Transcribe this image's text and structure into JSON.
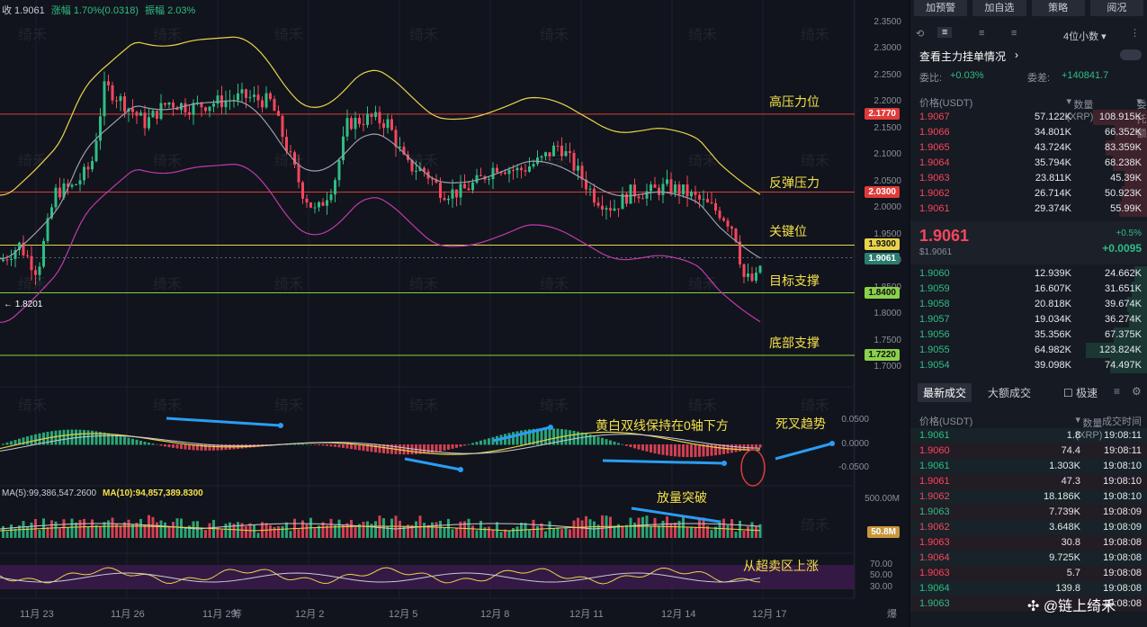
{
  "top_info": {
    "close": "收 1.9061",
    "change": "涨幅 1.70%(0.0318)",
    "amplitude": "振幅 2.03%"
  },
  "watermark": "绮禾",
  "price_axis": [
    "2.3500",
    "2.3000",
    "2.2500",
    "2.2000",
    "2.1500",
    "2.1000",
    "2.0500",
    "2.0000",
    "1.9500",
    "1.9000",
    "1.8500",
    "1.8000",
    "1.7500",
    "1.7000"
  ],
  "levels": [
    {
      "price": "2.1770",
      "label": "高压力位",
      "color": "#e03a3a"
    },
    {
      "price": "2.0300",
      "label": "反弹压力",
      "color": "#e03a3a"
    },
    {
      "price": "1.9300",
      "label": "关键位",
      "color": "#e8d44a"
    },
    {
      "price": "1.8400",
      "label": "目标支撑",
      "color": "#8bd04a"
    },
    {
      "price": "1.7220",
      "label": "底部支撑",
      "color": "#8bd04a"
    }
  ],
  "last_price_tag": "1.9061",
  "low_marker": "← 1.8201",
  "macd_axis": [
    "0.0500",
    "0.0000",
    "-0.0500"
  ],
  "macd_annos": {
    "a1": "黄白双线保持在0轴下方",
    "a2": "死叉趋势"
  },
  "vol_label": {
    "ma5": "MA(5):99,386,547.2600",
    "ma10": "MA(10):94,857,389.8300",
    "axis": "500.00M",
    "tag": "50.8M",
    "anno": "放量突破"
  },
  "rsi_axis": [
    "70.00",
    "50.00",
    "30.00"
  ],
  "rsi_anno": "从超卖区上涨",
  "x_labels": [
    "11月 23",
    "11月 26",
    "11月 29",
    "12月 2",
    "12月 5",
    "12月 8",
    "12月 11",
    "12月 14",
    "12月 17"
  ],
  "mini_labels": [
    "筹",
    "爆"
  ],
  "panel": {
    "buttons": [
      "加预警",
      "加自选",
      "策略",
      "阅况"
    ],
    "decimals": "4位小数",
    "main_force": "查看主力挂单情况",
    "ratio_label": "委比:",
    "ratio_value": "+0.03%",
    "diff_label": "委差:",
    "diff_value": "+140841.7",
    "headers": [
      "价格(USDT)",
      "数量 (XRP)",
      "委托额"
    ],
    "asks": [
      [
        "1.9067",
        "57.122K",
        "108.915K"
      ],
      [
        "1.9066",
        "34.801K",
        "66.352K"
      ],
      [
        "1.9065",
        "43.724K",
        "83.359K"
      ],
      [
        "1.9064",
        "35.794K",
        "68.238K"
      ],
      [
        "1.9063",
        "23.811K",
        "45.39K"
      ],
      [
        "1.9062",
        "26.714K",
        "50.923K"
      ],
      [
        "1.9061",
        "29.374K",
        "55.99K"
      ]
    ],
    "mid_price": "1.9061",
    "mid_usd": "$1.9061",
    "mid_pct": "+0.5%",
    "mid_change": "+0.0095",
    "bids": [
      [
        "1.9060",
        "12.939K",
        "24.662K"
      ],
      [
        "1.9059",
        "16.607K",
        "31.651K"
      ],
      [
        "1.9058",
        "20.818K",
        "39.674K"
      ],
      [
        "1.9057",
        "19.034K",
        "36.274K"
      ],
      [
        "1.9056",
        "35.356K",
        "67.375K"
      ],
      [
        "1.9055",
        "64.982K",
        "123.824K"
      ],
      [
        "1.9054",
        "39.098K",
        "74.497K"
      ]
    ],
    "tabs": [
      "最新成交",
      "大额成交"
    ],
    "speed": "极速",
    "trade_headers": [
      "价格(USDT)",
      "数量(XRP)",
      "成交时间"
    ],
    "trades": [
      [
        "1.9061",
        "1.8",
        "19:08:11",
        "g"
      ],
      [
        "1.9060",
        "74.4",
        "19:08:11",
        "r"
      ],
      [
        "1.9061",
        "1.303K",
        "19:08:10",
        "g"
      ],
      [
        "1.9061",
        "47.3",
        "19:08:10",
        "r"
      ],
      [
        "1.9062",
        "18.186K",
        "19:08:10",
        "r"
      ],
      [
        "1.9063",
        "7.739K",
        "19:08:09",
        "g"
      ],
      [
        "1.9062",
        "3.648K",
        "19:08:09",
        "r"
      ],
      [
        "1.9063",
        "30.8",
        "19:08:08",
        "r"
      ],
      [
        "1.9064",
        "9.725K",
        "19:08:08",
        "r"
      ],
      [
        "1.9063",
        "5.7",
        "19:08:08",
        "r"
      ],
      [
        "1.9064",
        "139.8",
        "19:08:08",
        "g"
      ],
      [
        "1.9063",
        "",
        "19:08:08",
        "g"
      ]
    ],
    "brand": "@链上绮禾"
  }
}
